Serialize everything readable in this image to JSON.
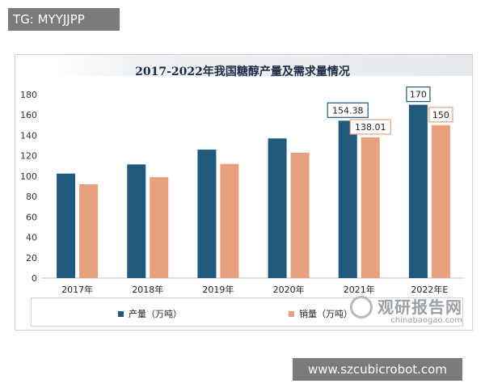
{
  "watermark_tag": "TG: MYYJJPP",
  "site_label": "www.szcubicrobot.com",
  "brand": {
    "cn": "观研报告网",
    "en": "chinabaogao.com"
  },
  "chart_data": {
    "type": "bar",
    "title": "2017-2022年我国糖醇产量及需求量情况",
    "categories": [
      "2017年",
      "2018年",
      "2019年",
      "2020年",
      "2021年",
      "2022年E"
    ],
    "series": [
      {
        "name": "产量（万吨）",
        "color": "#1f5a7e",
        "values": [
          102.5,
          111.5,
          126,
          137,
          154.38,
          170
        ]
      },
      {
        "name": "销量（万吨）",
        "color": "#e8a07e",
        "values": [
          92,
          99,
          112,
          123,
          138.01,
          150
        ]
      }
    ],
    "data_labels": [
      {
        "series": 0,
        "index": 4,
        "text": "154.38"
      },
      {
        "series": 1,
        "index": 4,
        "text": "138.01"
      },
      {
        "series": 0,
        "index": 5,
        "text": "170"
      },
      {
        "series": 1,
        "index": 5,
        "text": "150"
      }
    ],
    "ylim": [
      0,
      180
    ],
    "yticks": [
      0,
      20,
      40,
      60,
      80,
      100,
      120,
      140,
      160,
      180
    ],
    "grid": false,
    "legend_position": "bottom"
  }
}
